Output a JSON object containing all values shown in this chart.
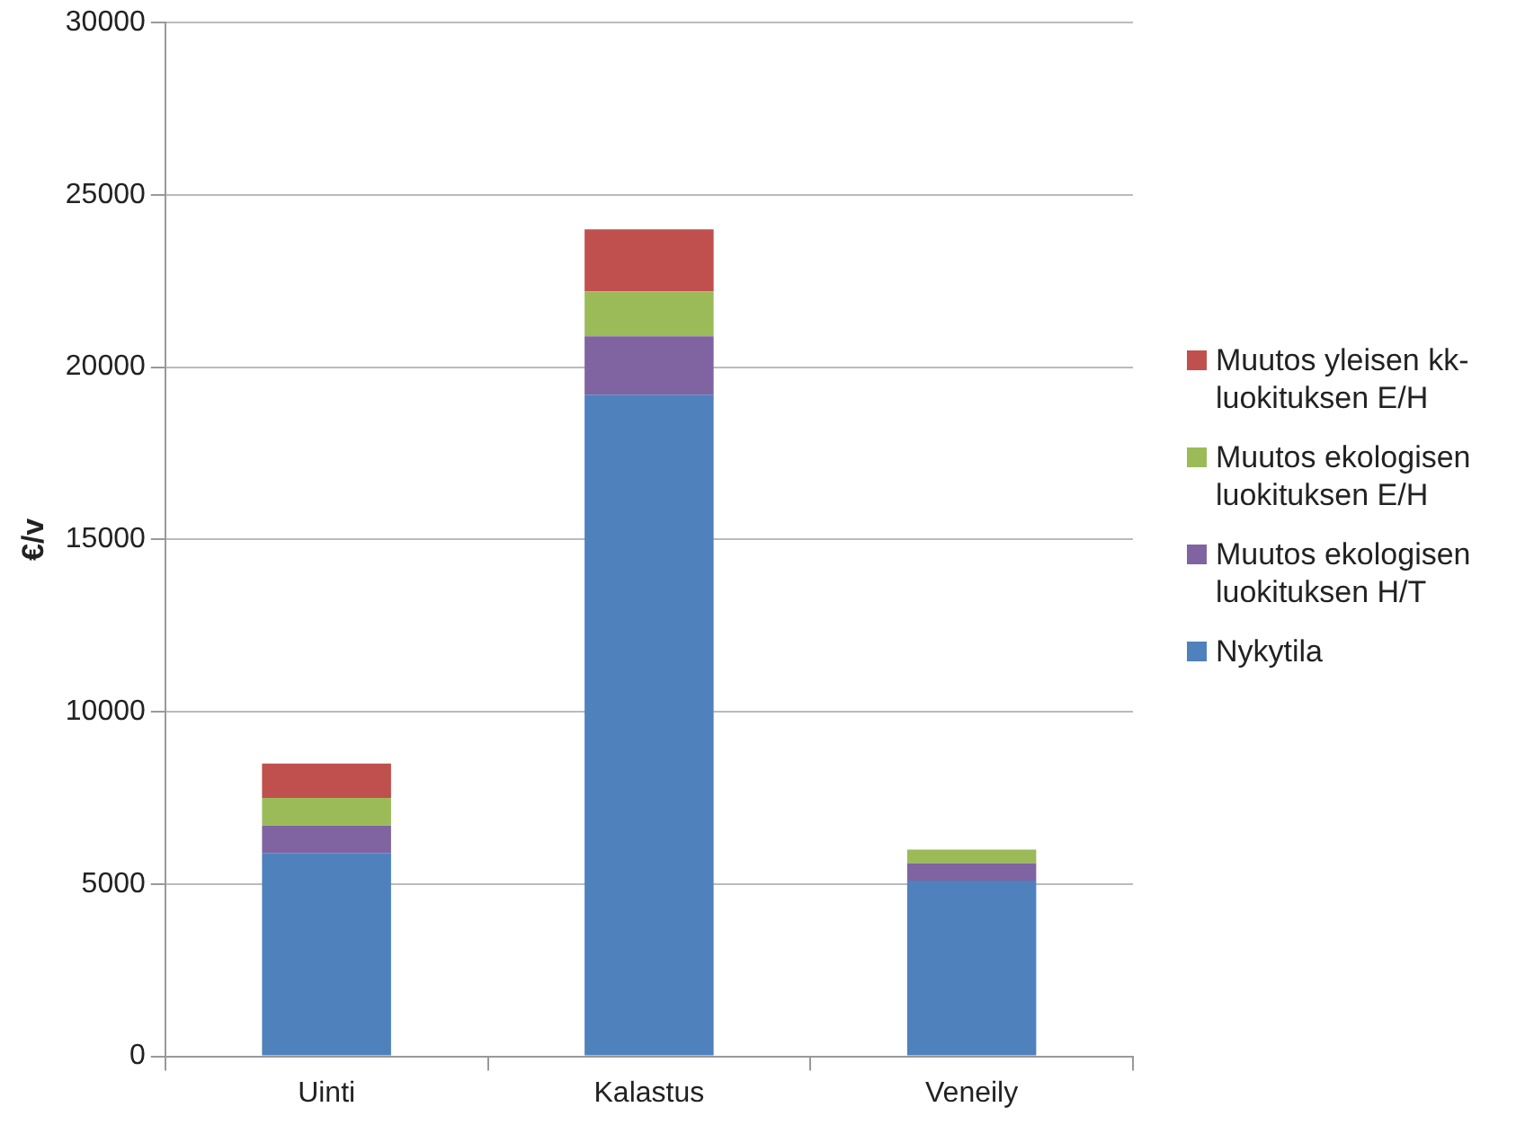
{
  "chart_data": {
    "type": "bar",
    "stacked": true,
    "ylabel": "€/v",
    "categories": [
      "Uinti",
      "Kalastus",
      "Veneily"
    ],
    "series": [
      {
        "name": "Nykytila",
        "color": "#4f81bd",
        "values": [
          5900,
          19200,
          5100
        ]
      },
      {
        "name": "Muutos ekologisen luokituksen H/T",
        "color": "#8064a2",
        "values": [
          800,
          1700,
          500
        ]
      },
      {
        "name": "Muutos ekologisen luokituksen E/H",
        "color": "#9bbb59",
        "values": [
          800,
          1300,
          400
        ]
      },
      {
        "name": "Muutos yleisen kk-luokituksen E/H",
        "color": "#c0504d",
        "values": [
          1000,
          1800,
          0
        ]
      }
    ],
    "ylim": [
      0,
      30000
    ],
    "yticks": [
      0,
      5000,
      10000,
      15000,
      20000,
      25000,
      30000
    ],
    "grid": "y",
    "legend": "right"
  }
}
